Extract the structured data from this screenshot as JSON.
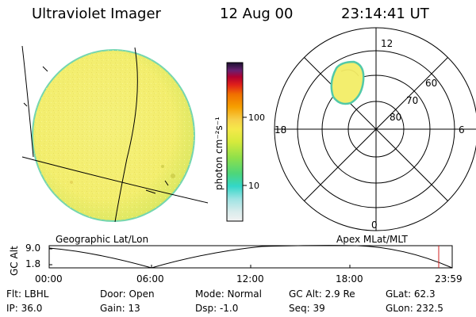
{
  "header": {
    "title": "Ultraviolet Imager",
    "date": "12 Aug 00",
    "time": "23:14:41  UT"
  },
  "colorbar": {
    "label": "photon cm⁻²s⁻¹",
    "ticks": [
      "100",
      "10"
    ]
  },
  "polar_plot": {
    "mlt_labels": {
      "top": "12",
      "left": "18",
      "right": "6",
      "bottom": "0"
    },
    "mlat_labels": [
      "60",
      "70",
      "80"
    ]
  },
  "panel_labels": {
    "left": "Geographic Lat/Lon",
    "right": "Apex MLat/MLT"
  },
  "timeline": {
    "ylabel": "GC Alt",
    "yticks": [
      "9.0",
      "1.8"
    ],
    "xticks": [
      "00:00",
      "06:00",
      "12:00",
      "18:00",
      "23:59"
    ]
  },
  "info": {
    "row1": [
      "Flt: LBHL",
      "Door: Open",
      "Mode: Normal",
      "GC Alt: 2.9 Re",
      "GLat:  62.3"
    ],
    "row2": [
      "IP: 36.0",
      "Gain: 13",
      "Dsp:   -1.0",
      "Seq: 39",
      "GLon: 232.5"
    ]
  }
}
